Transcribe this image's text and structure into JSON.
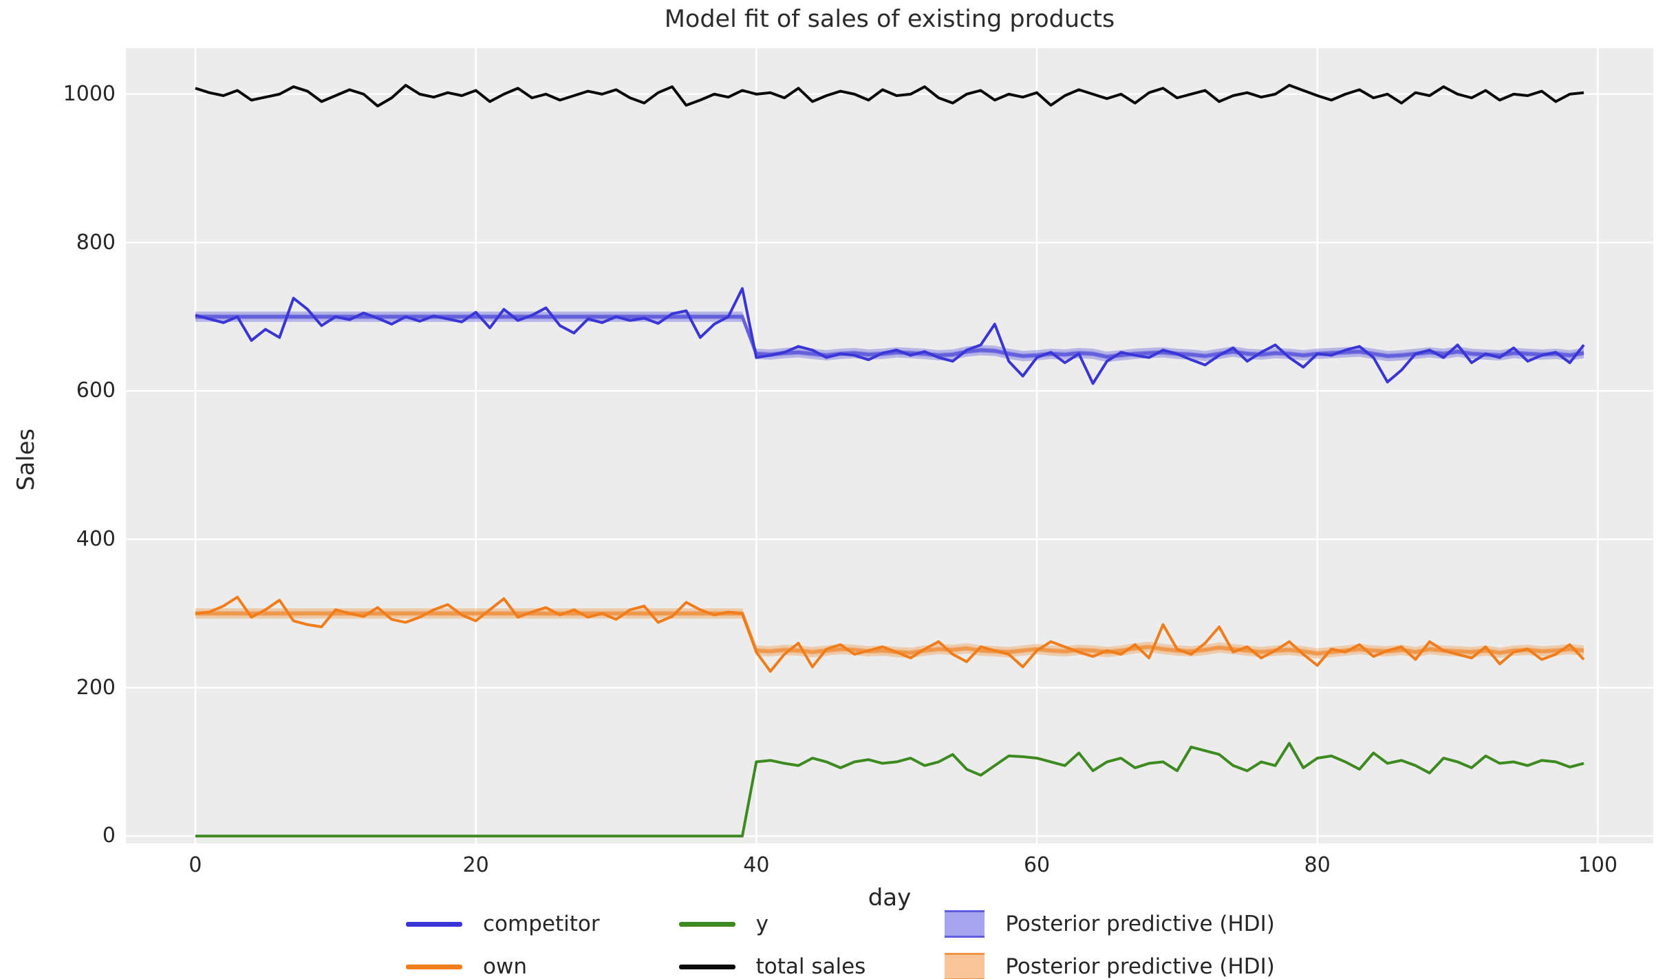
{
  "title": "Model fit of sales of existing products",
  "axes": {
    "xlabel": "day",
    "ylabel": "Sales",
    "x_ticks": [
      0,
      20,
      40,
      60,
      80,
      100
    ],
    "y_ticks": [
      0,
      200,
      400,
      600,
      800,
      1000
    ]
  },
  "legend": {
    "entries": [
      {
        "label": "competitor",
        "type": "line",
        "color": "#3a35d7"
      },
      {
        "label": "own",
        "type": "line",
        "color": "#f07d1a"
      },
      {
        "label": "y",
        "type": "line",
        "color": "#3d8a20"
      },
      {
        "label": "total sales",
        "type": "line",
        "color": "#0a0a0a"
      },
      {
        "label": "Posterior predictive (HDI)",
        "type": "patch",
        "fill": "rgba(58,53,215,0.45)",
        "edge": "rgba(58,53,215,0.65)"
      },
      {
        "label": "Posterior predictive (HDI)",
        "type": "patch",
        "fill": "rgba(240,125,26,0.45)",
        "edge": "rgba(240,125,26,0.65)"
      }
    ]
  },
  "chart_data": {
    "type": "line",
    "title": "Model fit of sales of existing products",
    "xlabel": "day",
    "ylabel": "Sales",
    "xlim": [
      -4.95,
      103.95
    ],
    "ylim": [
      -10,
      1062
    ],
    "grid": true,
    "background": "#ececec",
    "grid_color": "#ffffff",
    "legend_position": "below",
    "x": {
      "start": 0,
      "step": 1,
      "count": 100
    },
    "series": [
      {
        "name": "competitor",
        "color": "#3a35d7",
        "width": 4,
        "values": [
          702,
          697,
          692,
          700,
          668,
          683,
          672,
          725,
          710,
          688,
          700,
          696,
          705,
          698,
          690,
          700,
          694,
          701,
          697,
          693,
          706,
          685,
          710,
          695,
          702,
          712,
          688,
          678,
          697,
          692,
          700,
          695,
          698,
          691,
          704,
          708,
          672,
          690,
          700,
          738,
          645,
          648,
          652,
          660,
          655,
          645,
          650,
          648,
          642,
          651,
          655,
          648,
          653,
          645,
          640,
          655,
          662,
          690,
          640,
          620,
          645,
          652,
          638,
          650,
          610,
          640,
          652,
          648,
          645,
          655,
          650,
          642,
          635,
          648,
          658,
          640,
          652,
          662,
          645,
          632,
          650,
          648,
          655,
          660,
          645,
          612,
          628,
          650,
          655,
          645,
          662,
          638,
          650,
          645,
          658,
          640,
          648,
          652,
          638,
          662
        ]
      },
      {
        "name": "own",
        "color": "#f07d1a",
        "width": 4,
        "values": [
          300,
          302,
          310,
          322,
          295,
          305,
          318,
          290,
          285,
          282,
          305,
          300,
          296,
          308,
          292,
          288,
          295,
          305,
          312,
          298,
          290,
          305,
          320,
          295,
          302,
          308,
          298,
          305,
          295,
          300,
          292,
          305,
          310,
          288,
          296,
          315,
          305,
          298,
          302,
          300,
          248,
          222,
          245,
          260,
          228,
          252,
          258,
          245,
          250,
          255,
          248,
          240,
          252,
          262,
          245,
          235,
          255,
          250,
          245,
          228,
          250,
          262,
          255,
          248,
          242,
          250,
          245,
          258,
          240,
          285,
          252,
          245,
          260,
          282,
          248,
          255,
          240,
          250,
          262,
          245,
          230,
          252,
          248,
          258,
          242,
          250,
          255,
          238,
          262,
          250,
          245,
          240,
          255,
          232,
          248,
          252,
          238,
          245,
          258,
          238
        ]
      },
      {
        "name": "y",
        "color": "#3d8a20",
        "width": 4,
        "values": [
          0,
          0,
          0,
          0,
          0,
          0,
          0,
          0,
          0,
          0,
          0,
          0,
          0,
          0,
          0,
          0,
          0,
          0,
          0,
          0,
          0,
          0,
          0,
          0,
          0,
          0,
          0,
          0,
          0,
          0,
          0,
          0,
          0,
          0,
          0,
          0,
          0,
          0,
          0,
          0,
          100,
          102,
          98,
          95,
          105,
          100,
          92,
          100,
          103,
          98,
          100,
          105,
          95,
          100,
          110,
          90,
          82,
          95,
          108,
          107,
          105,
          100,
          95,
          112,
          88,
          100,
          105,
          92,
          98,
          100,
          88,
          120,
          115,
          110,
          95,
          88,
          100,
          95,
          125,
          92,
          105,
          108,
          100,
          90,
          112,
          98,
          102,
          95,
          85,
          105,
          100,
          92,
          108,
          98,
          100,
          95,
          102,
          100,
          93,
          98
        ]
      },
      {
        "name": "total sales",
        "color": "#0a0a0a",
        "width": 4,
        "values": [
          1008,
          1002,
          998,
          1005,
          992,
          996,
          1000,
          1010,
          1004,
          990,
          998,
          1006,
          1000,
          984,
          995,
          1012,
          1000,
          996,
          1002,
          998,
          1005,
          990,
          1000,
          1008,
          995,
          1000,
          992,
          998,
          1004,
          1000,
          1006,
          995,
          988,
          1002,
          1010,
          985,
          992,
          1000,
          996,
          1005,
          1000,
          1002,
          995,
          1008,
          990,
          998,
          1004,
          1000,
          992,
          1006,
          998,
          1000,
          1010,
          995,
          988,
          1000,
          1005,
          992,
          1000,
          996,
          1002,
          985,
          998,
          1006,
          1000,
          994,
          1000,
          988,
          1002,
          1008,
          995,
          1000,
          1005,
          990,
          998,
          1002,
          996,
          1000,
          1012,
          1005,
          998,
          992,
          1000,
          1006,
          995,
          1000,
          988,
          1002,
          998,
          1010,
          1000,
          995,
          1005,
          992,
          1000,
          998,
          1004,
          990,
          1000,
          1002
        ]
      }
    ],
    "bands": [
      {
        "name": "Posterior predictive (HDI) competitor",
        "fill": "rgba(58,53,215,0.30)",
        "inner_fill": "rgba(58,53,215,0.25)",
        "stroke": "rgba(58,53,215,0.55)",
        "halfwidth": 7,
        "mean": [
          700,
          700,
          700,
          700,
          700,
          700,
          700,
          700,
          700,
          700,
          700,
          700,
          700,
          700,
          700,
          700,
          700,
          700,
          700,
          700,
          700,
          700,
          700,
          700,
          700,
          700,
          700,
          700,
          700,
          700,
          700,
          700,
          700,
          700,
          700,
          700,
          700,
          700,
          700,
          700,
          650,
          649,
          651,
          652,
          650,
          648,
          650,
          651,
          649,
          650,
          652,
          651,
          650,
          648,
          649,
          653,
          655,
          654,
          650,
          647,
          648,
          650,
          649,
          651,
          650,
          646,
          648,
          650,
          651,
          652,
          650,
          649,
          647,
          650,
          653,
          650,
          649,
          651,
          650,
          648,
          650,
          651,
          652,
          653,
          650,
          647,
          648,
          650,
          652,
          650,
          653,
          650,
          649,
          648,
          651,
          650,
          649,
          650,
          648,
          651
        ]
      },
      {
        "name": "Posterior predictive (HDI) own",
        "fill": "rgba(240,125,26,0.30)",
        "inner_fill": "rgba(240,125,26,0.25)",
        "stroke": "rgba(240,125,26,0.55)",
        "halfwidth": 7,
        "mean": [
          300,
          300,
          300,
          300,
          300,
          300,
          300,
          300,
          300,
          300,
          300,
          300,
          300,
          300,
          300,
          300,
          300,
          300,
          300,
          300,
          300,
          300,
          300,
          300,
          300,
          300,
          300,
          300,
          300,
          300,
          300,
          300,
          300,
          300,
          300,
          300,
          300,
          300,
          300,
          300,
          250,
          249,
          251,
          250,
          248,
          250,
          252,
          251,
          249,
          250,
          248,
          247,
          250,
          252,
          251,
          253,
          250,
          249,
          248,
          250,
          252,
          250,
          249,
          251,
          250,
          248,
          250,
          253,
          255,
          252,
          250,
          249,
          251,
          254,
          252,
          250,
          248,
          250,
          251,
          249,
          246,
          248,
          250,
          252,
          250,
          249,
          251,
          248,
          252,
          250,
          249,
          248,
          250,
          247,
          250,
          251,
          249,
          250,
          252,
          250
        ]
      }
    ]
  }
}
